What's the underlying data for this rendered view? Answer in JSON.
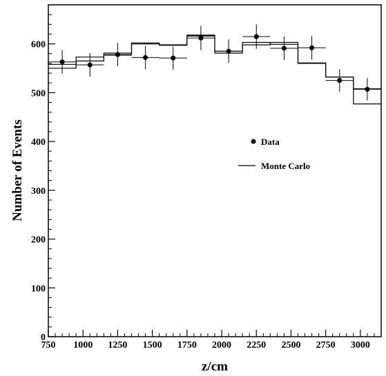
{
  "chart_data": {
    "type": "scatter",
    "title": "",
    "xlabel": "z/cm",
    "ylabel": "Number of Events",
    "xlim": [
      750,
      3150
    ],
    "ylim": [
      0,
      680
    ],
    "x_ticks": [
      750,
      1000,
      1250,
      1500,
      1750,
      2000,
      2250,
      2500,
      2750,
      3000
    ],
    "y_ticks": [
      0,
      100,
      200,
      300,
      400,
      500,
      600
    ],
    "legend_position": "right-middle",
    "legend": {
      "data_label": "Data",
      "mc_label": "Monte Carlo"
    },
    "series": [
      {
        "name": "Data",
        "style": "points with error bars",
        "x": [
          850,
          1050,
          1250,
          1450,
          1650,
          1850,
          2050,
          2250,
          2450,
          2650,
          2850,
          3050
        ],
        "x_halfwidth": 100,
        "y": [
          563,
          557,
          578,
          572,
          571,
          612,
          585,
          615,
          591,
          592,
          525,
          507
        ],
        "y_err": [
          24,
          24,
          24,
          24,
          24,
          25,
          24,
          25,
          24,
          24,
          23,
          23
        ]
      },
      {
        "name": "Monte Carlo",
        "style": "step histogram",
        "bin_edges": [
          750,
          950,
          1150,
          1350,
          1550,
          1750,
          1950,
          2150,
          2350,
          2550,
          2750,
          2950,
          3150
        ],
        "values": [
          550,
          573,
          581,
          602,
          598,
          616,
          581,
          598,
          603,
          561,
          532,
          477
        ]
      },
      {
        "name": "Monte Carlo (second curve)",
        "style": "step histogram",
        "bin_edges": [
          750,
          950,
          1150,
          1350,
          1550,
          1750,
          1950,
          2150,
          2350,
          2550,
          2750,
          2950,
          3150
        ],
        "values": [
          558,
          565,
          577,
          600,
          597,
          618,
          585,
          603,
          599,
          560,
          532,
          508
        ]
      }
    ]
  }
}
